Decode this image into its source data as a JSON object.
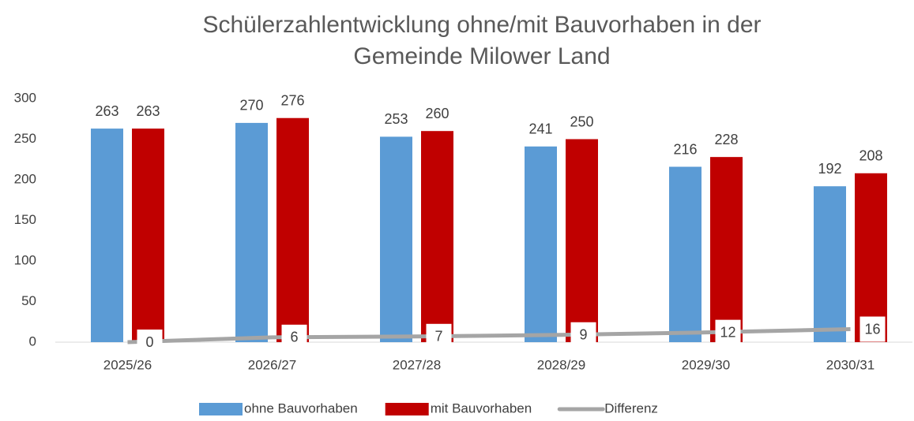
{
  "chart_data": {
    "type": "bar",
    "title": [
      "Schülerzahlentwicklung ohne/mit Bauvorhaben in der",
      "Gemeinde Milower Land"
    ],
    "categories": [
      "2025/26",
      "2026/27",
      "2027/28",
      "2028/29",
      "2029/30",
      "2030/31"
    ],
    "series": [
      {
        "name": "ohne Bauvorhaben",
        "color": "#5b9bd5",
        "values": [
          263,
          270,
          253,
          241,
          216,
          192
        ]
      },
      {
        "name": "mit Bauvorhaben",
        "color": "#c00000",
        "values": [
          263,
          276,
          260,
          250,
          228,
          208
        ]
      },
      {
        "name": "Differenz",
        "type": "line",
        "color": "#a5a5a5",
        "values": [
          0,
          6,
          7,
          9,
          12,
          16
        ]
      }
    ],
    "ylim": [
      0,
      300
    ],
    "yticks": [
      0,
      50,
      100,
      150,
      200,
      250,
      300
    ],
    "grid": false,
    "legend": "bottom"
  }
}
